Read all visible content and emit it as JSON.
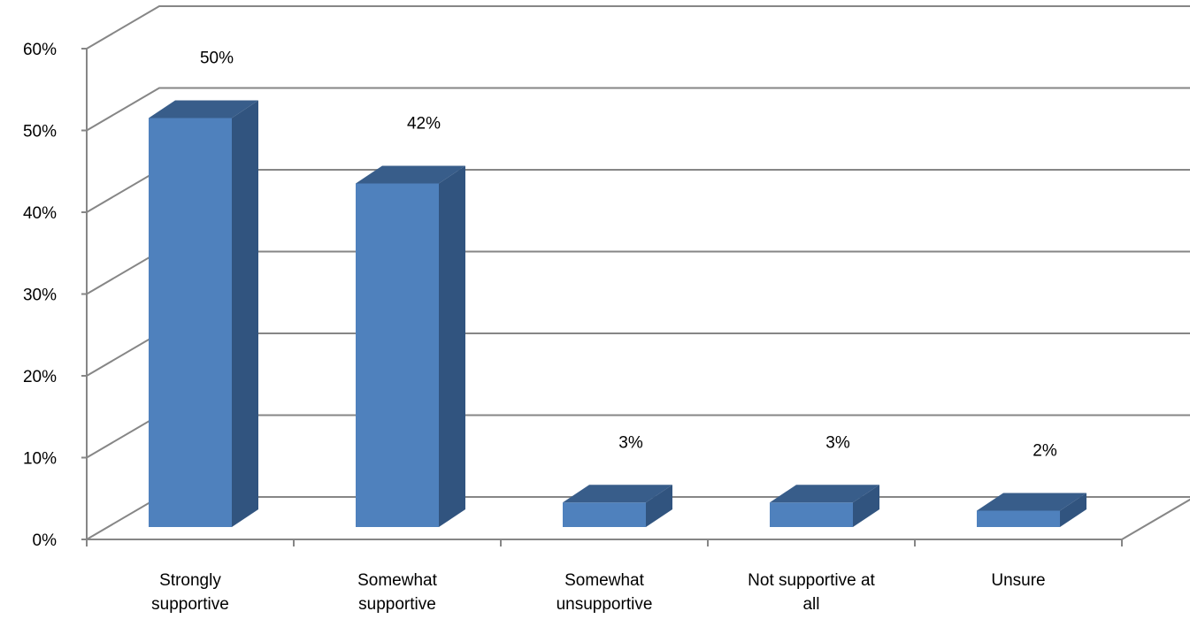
{
  "chart_data": {
    "type": "bar",
    "three_d": true,
    "categories": [
      [
        "Strongly",
        "supportive"
      ],
      [
        "Somewhat",
        "supportive"
      ],
      [
        "Somewhat",
        "unsupportive"
      ],
      [
        "Not supportive at",
        "all"
      ],
      [
        "Unsure"
      ]
    ],
    "values": [
      50,
      42,
      3,
      3,
      2
    ],
    "data_labels": [
      "50%",
      "42%",
      "3%",
      "3%",
      "2%"
    ],
    "ytick_labels": [
      "0%",
      "10%",
      "20%",
      "30%",
      "40%",
      "50%",
      "60%"
    ],
    "ylim": [
      0,
      60
    ],
    "grid": true,
    "legend": "none",
    "colors": {
      "bar_front": "#4f81bd",
      "bar_side": "#31547f",
      "bar_top": "#385d8a",
      "gridline": "#868686"
    }
  }
}
